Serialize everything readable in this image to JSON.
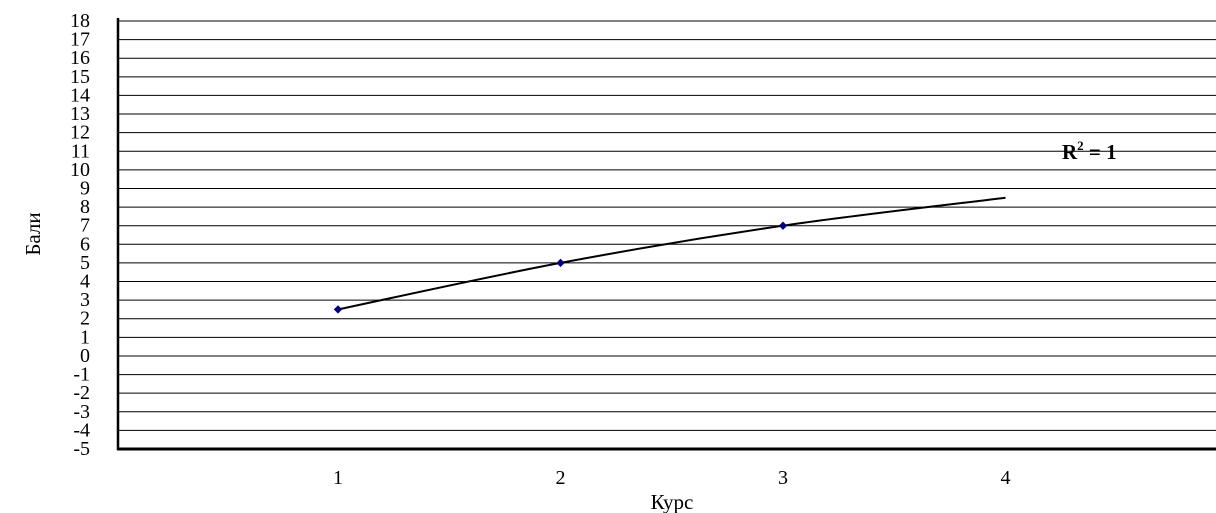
{
  "chart_data": {
    "type": "line",
    "x": [
      1,
      2,
      3
    ],
    "categories": [
      "1",
      "2",
      "3",
      "4"
    ],
    "series": [
      {
        "values": [
          2.5,
          5,
          7
        ]
      }
    ],
    "trendline": {
      "type": "logarithmic",
      "x": [
        1,
        2,
        3,
        4
      ],
      "y": [
        2.5,
        5,
        7,
        8.5
      ]
    },
    "annotation": {
      "base": "R",
      "sup": "2",
      "rest": " = 1"
    },
    "xlabel": "Курс",
    "ylabel": "Бали",
    "ylim": [
      -5,
      18
    ],
    "yticks": [
      "18",
      "17",
      "16",
      "15",
      "14",
      "13",
      "12",
      "11",
      "10",
      "9",
      "8",
      "7",
      "6",
      "5",
      "4",
      "3",
      "2",
      "1",
      "0",
      "-1",
      "-2",
      "-3",
      "-4",
      "-5"
    ],
    "grid": true,
    "colors": {
      "line": "#000000",
      "marker": "#000080",
      "grid": "#000000"
    }
  }
}
